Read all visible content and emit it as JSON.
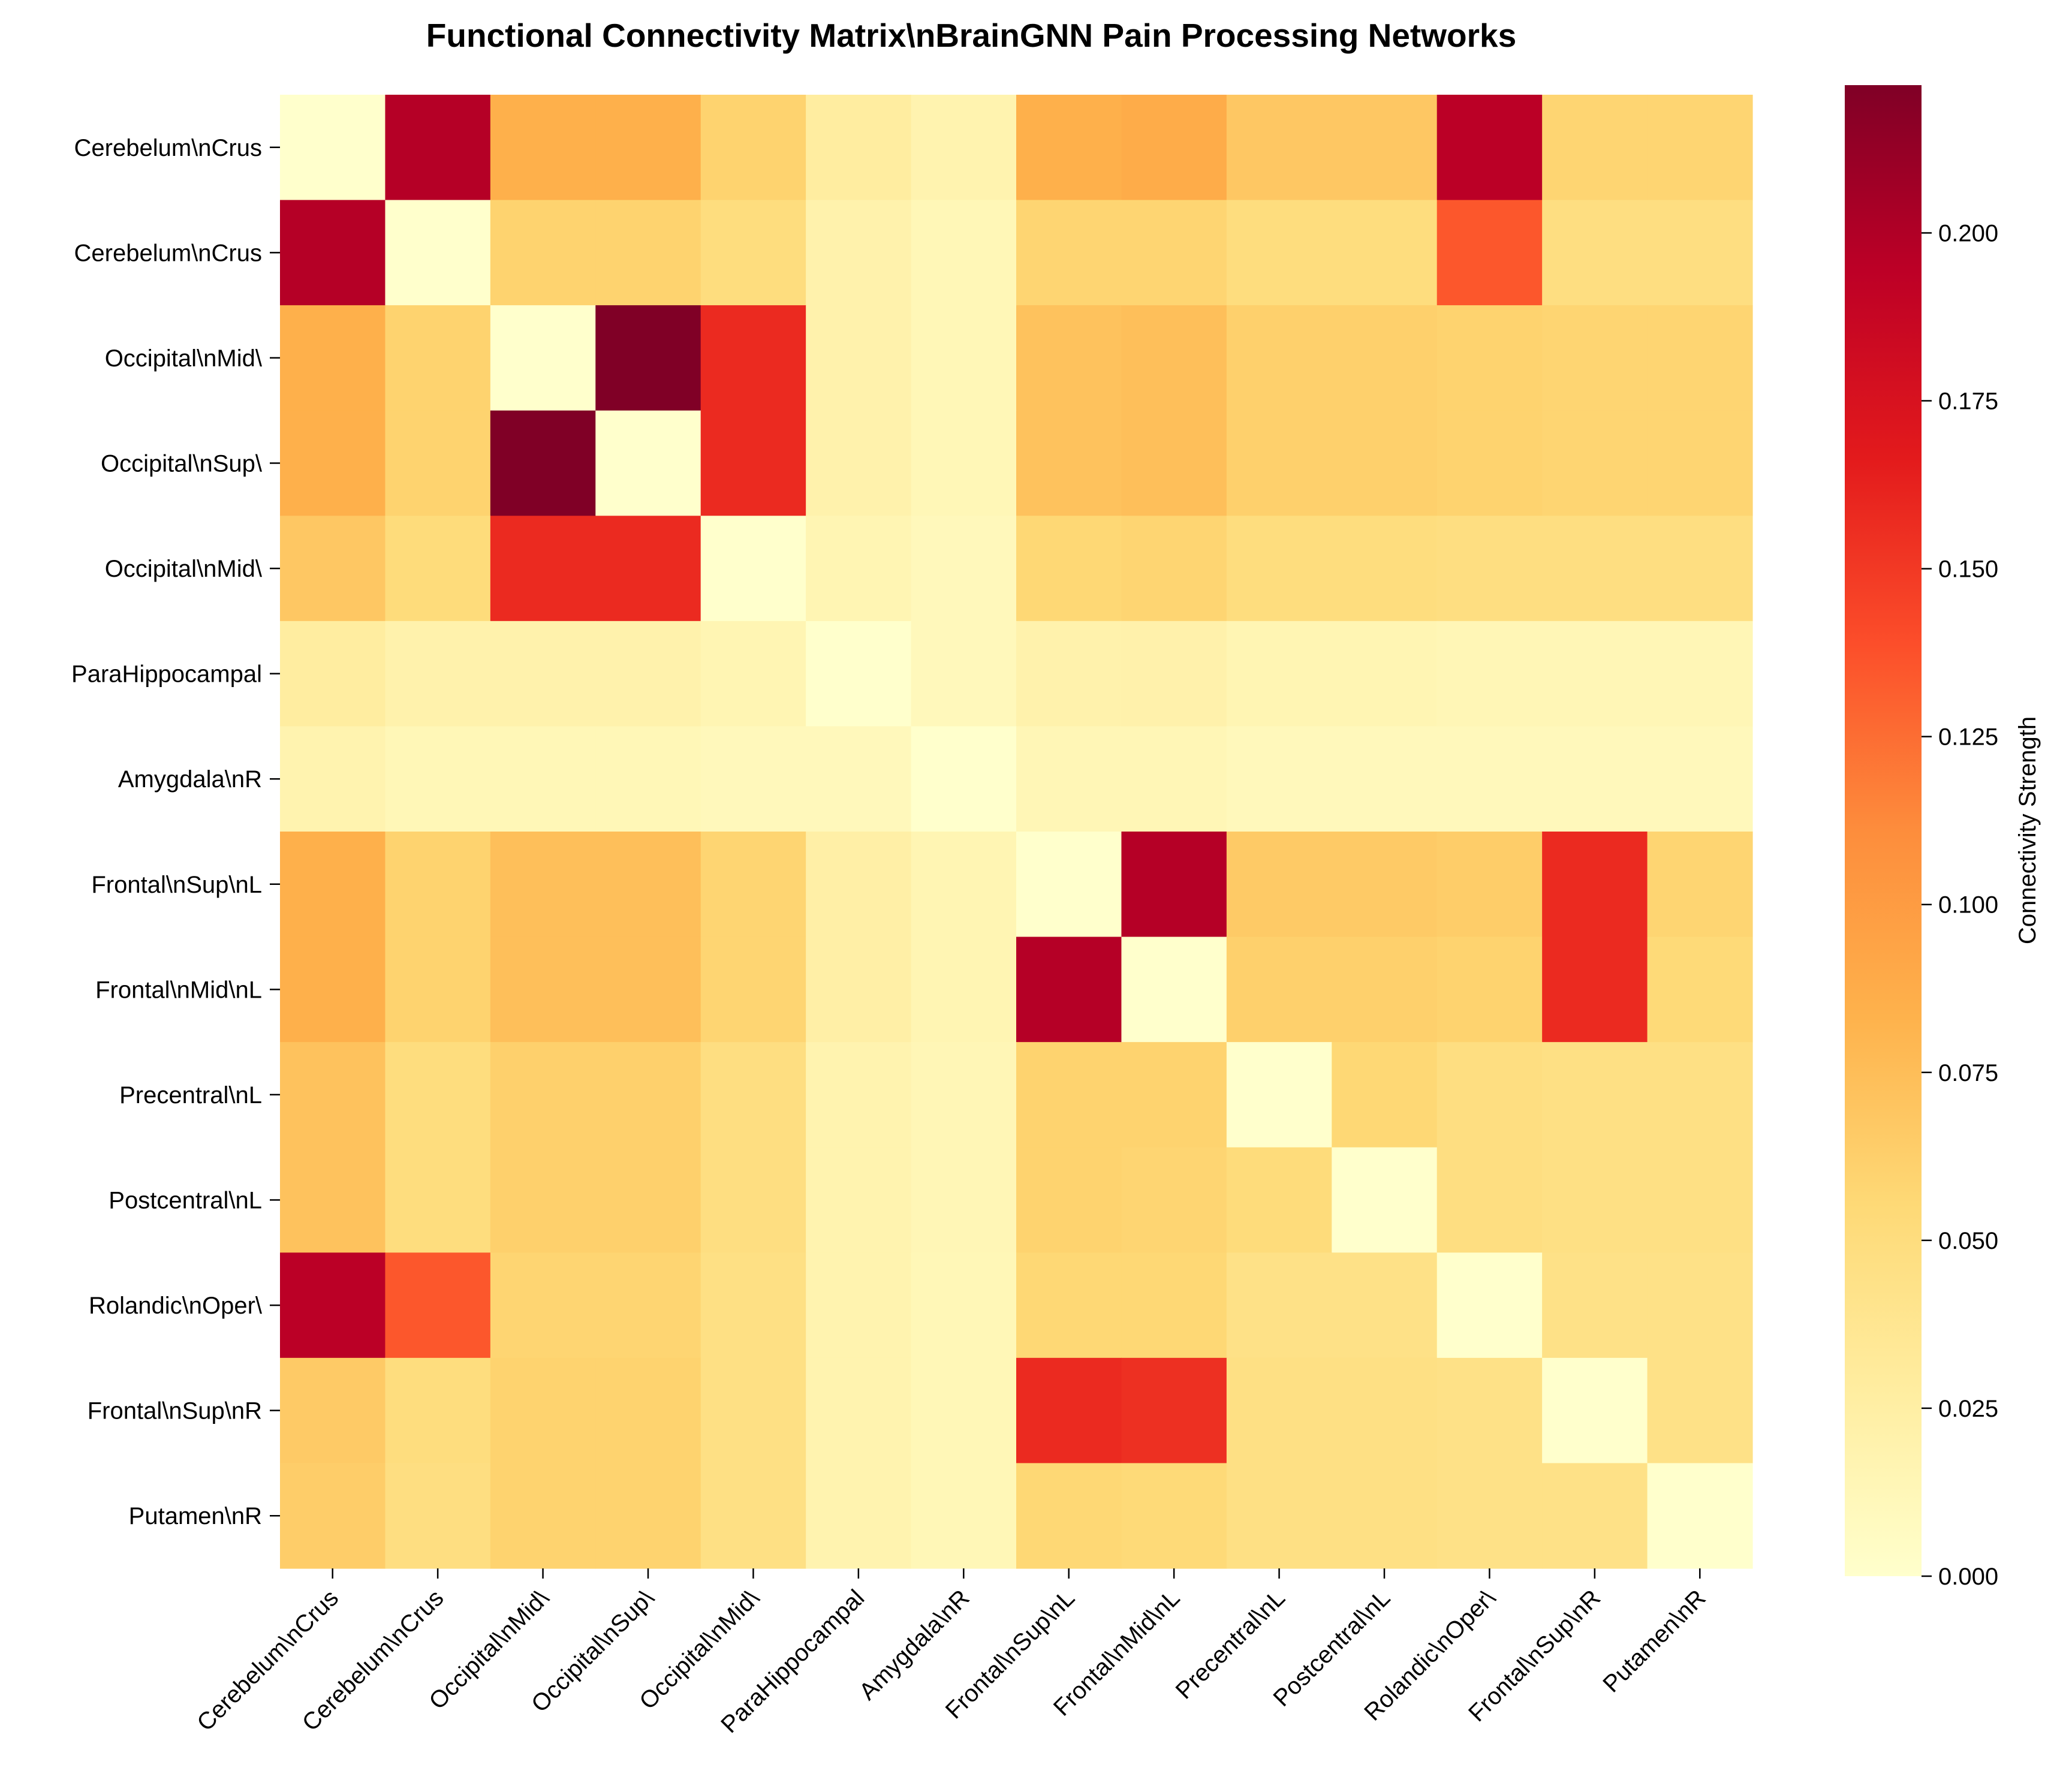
{
  "chart_data": {
    "type": "heatmap",
    "title": "Functional Connectivity Matrix\\nBrainGNN Pain Processing Networks",
    "row_labels": [
      "Cerebelum\\nCrus",
      "Cerebelum\\nCrus",
      "Occipital\\nMid\\",
      "Occipital\\nSup\\",
      "Occipital\\nMid\\",
      "ParaHippocampal",
      "Amygdala\\nR",
      "Frontal\\nSup\\nL",
      "Frontal\\nMid\\nL",
      "Precentral\\nL",
      "Postcentral\\nL",
      "Rolandic\\nOper\\",
      "Frontal\\nSup\\nR",
      "Putamen\\nR"
    ],
    "col_labels": [
      "Cerebelum\\nCrus",
      "Cerebelum\\nCrus",
      "Occipital\\nMid\\",
      "Occipital\\nSup\\",
      "Occipital\\nMid\\",
      "ParaHippocampal",
      "Amygdala\\nR",
      "Frontal\\nSup\\nL",
      "Frontal\\nMid\\nL",
      "Precentral\\nL",
      "Postcentral\\nL",
      "Rolandic\\nOper\\",
      "Frontal\\nSup\\nR",
      "Putamen\\nR"
    ],
    "values": [
      [
        0.0,
        0.198,
        0.085,
        0.085,
        0.06,
        0.028,
        0.018,
        0.085,
        0.088,
        0.068,
        0.068,
        0.195,
        0.058,
        0.058
      ],
      [
        0.198,
        0.0,
        0.06,
        0.06,
        0.05,
        0.02,
        0.013,
        0.058,
        0.058,
        0.05,
        0.05,
        0.135,
        0.048,
        0.048
      ],
      [
        0.085,
        0.06,
        0.0,
        0.222,
        0.158,
        0.02,
        0.013,
        0.072,
        0.074,
        0.062,
        0.062,
        0.06,
        0.058,
        0.058
      ],
      [
        0.085,
        0.06,
        0.222,
        0.0,
        0.158,
        0.02,
        0.013,
        0.072,
        0.074,
        0.062,
        0.062,
        0.06,
        0.058,
        0.058
      ],
      [
        0.068,
        0.052,
        0.158,
        0.158,
        0.0,
        0.016,
        0.011,
        0.056,
        0.058,
        0.05,
        0.05,
        0.048,
        0.048,
        0.048
      ],
      [
        0.028,
        0.02,
        0.02,
        0.02,
        0.016,
        0.0,
        0.011,
        0.02,
        0.021,
        0.016,
        0.016,
        0.014,
        0.014,
        0.014
      ],
      [
        0.018,
        0.013,
        0.013,
        0.013,
        0.011,
        0.011,
        0.0,
        0.014,
        0.014,
        0.011,
        0.011,
        0.011,
        0.011,
        0.011
      ],
      [
        0.085,
        0.06,
        0.074,
        0.074,
        0.058,
        0.024,
        0.016,
        0.0,
        0.198,
        0.066,
        0.066,
        0.064,
        0.158,
        0.058
      ],
      [
        0.085,
        0.06,
        0.074,
        0.074,
        0.058,
        0.024,
        0.016,
        0.198,
        0.0,
        0.062,
        0.062,
        0.06,
        0.158,
        0.054
      ],
      [
        0.072,
        0.05,
        0.062,
        0.062,
        0.048,
        0.018,
        0.014,
        0.06,
        0.06,
        0.0,
        0.056,
        0.048,
        0.046,
        0.046
      ],
      [
        0.072,
        0.05,
        0.062,
        0.062,
        0.048,
        0.018,
        0.014,
        0.06,
        0.058,
        0.052,
        0.0,
        0.048,
        0.046,
        0.046
      ],
      [
        0.195,
        0.135,
        0.058,
        0.058,
        0.046,
        0.018,
        0.013,
        0.056,
        0.056,
        0.044,
        0.044,
        0.0,
        0.044,
        0.044
      ],
      [
        0.066,
        0.05,
        0.06,
        0.06,
        0.046,
        0.018,
        0.013,
        0.158,
        0.155,
        0.046,
        0.046,
        0.044,
        0.0,
        0.044
      ],
      [
        0.064,
        0.048,
        0.06,
        0.06,
        0.046,
        0.018,
        0.013,
        0.056,
        0.054,
        0.046,
        0.046,
        0.044,
        0.044,
        0.0
      ]
    ],
    "vmin": 0.0,
    "vmax": 0.222,
    "colormap": "YlOrRd",
    "colormap_stops": [
      "#ffffcc",
      "#ffeda0",
      "#fed976",
      "#feb24c",
      "#fd8d3c",
      "#fc4e2a",
      "#e31a1c",
      "#bd0026",
      "#800026"
    ],
    "colorbar": {
      "label": "Connectivity Strength",
      "ticks": [
        0.0,
        0.025,
        0.05,
        0.075,
        0.1,
        0.125,
        0.15,
        0.175,
        0.2
      ],
      "tick_labels": [
        "0.000",
        "0.025",
        "0.050",
        "0.075",
        "0.100",
        "0.125",
        "0.150",
        "0.175",
        "0.200"
      ]
    }
  }
}
